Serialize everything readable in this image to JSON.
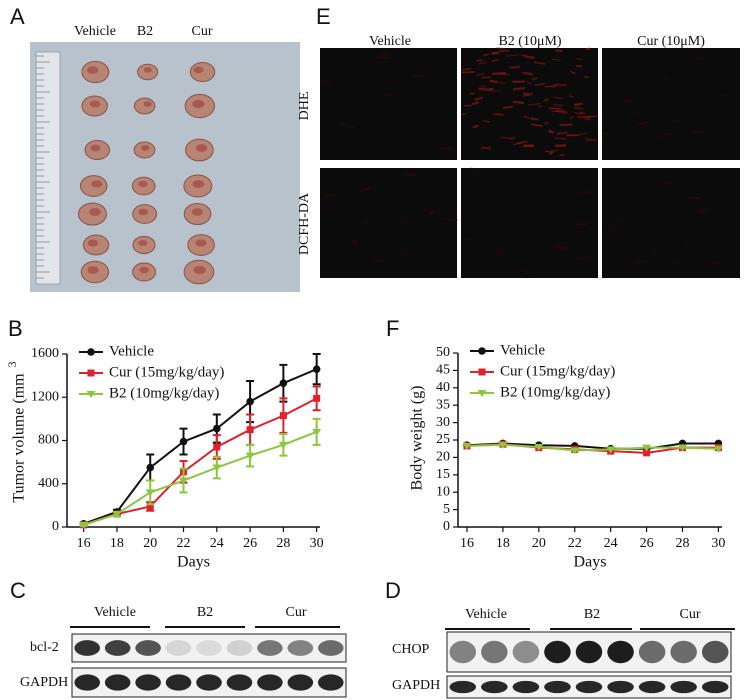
{
  "chart_data": [
    {
      "type": "line",
      "panel_label": "B",
      "xlabel": "Days",
      "ylabel": "Tumor volume (mm",
      "ylabel_superscript": "3",
      "x": [
        16,
        18,
        20,
        22,
        24,
        26,
        28,
        30
      ],
      "xlim": [
        15,
        30.2
      ],
      "xticks": [
        16,
        18,
        20,
        22,
        24,
        26,
        28,
        30
      ],
      "ylim": [
        0,
        1600
      ],
      "yticks": [
        0,
        400,
        800,
        1200,
        1600
      ],
      "legend": "upper left",
      "series": [
        {
          "name": "Vehicle",
          "color": "#111111",
          "marker": "circle",
          "values": [
            30,
            140,
            550,
            790,
            910,
            1160,
            1330,
            1460
          ],
          "errors": [
            10,
            20,
            120,
            120,
            130,
            190,
            170,
            140
          ]
        },
        {
          "name": "Cur (15mg/kg/day)",
          "color": "#e0202c",
          "marker": "square",
          "values": [
            20,
            120,
            190,
            510,
            740,
            900,
            1030,
            1190
          ],
          "errors": [
            10,
            20,
            40,
            100,
            110,
            140,
            160,
            110
          ]
        },
        {
          "name": "B2 (10mg/kg/day)",
          "color": "#8cc63f",
          "marker": "triangle",
          "values": [
            20,
            120,
            320,
            430,
            550,
            660,
            760,
            880
          ],
          "errors": [
            10,
            20,
            110,
            110,
            100,
            100,
            100,
            120
          ]
        }
      ]
    },
    {
      "type": "line",
      "panel_label": "F",
      "xlabel": "Days",
      "ylabel": "Body weight (g)",
      "x": [
        16,
        18,
        20,
        22,
        24,
        26,
        28,
        30
      ],
      "xlim": [
        15.5,
        30.2
      ],
      "xticks": [
        16,
        18,
        20,
        22,
        24,
        26,
        28,
        30
      ],
      "ylim": [
        0,
        50
      ],
      "yticks": [
        0,
        5,
        10,
        15,
        20,
        25,
        30,
        35,
        40,
        45,
        50
      ],
      "legend": "upper left",
      "series": [
        {
          "name": "Vehicle",
          "color": "#111111",
          "marker": "circle",
          "values": [
            23.5,
            24,
            23.5,
            23.3,
            22.5,
            22.5,
            24,
            24
          ]
        },
        {
          "name": "Cur (15mg/kg/day)",
          "color": "#e0202c",
          "marker": "square",
          "values": [
            23.3,
            23.8,
            22.8,
            22.3,
            21.8,
            21.3,
            22.8,
            22.8
          ]
        },
        {
          "name": "B2 (10mg/kg/day)",
          "color": "#8cc63f",
          "marker": "triangle",
          "values": [
            23.3,
            23.6,
            23,
            22,
            22.3,
            22.8,
            22.8,
            22.5
          ]
        }
      ]
    }
  ],
  "panel_a": {
    "label": "A",
    "columns": [
      "Vehicle",
      "B2",
      "Cur"
    ]
  },
  "panel_c": {
    "label": "C",
    "groups": [
      "Vehicle",
      "B2",
      "Cur"
    ],
    "rows": [
      "bcl-2",
      "GAPDH"
    ]
  },
  "panel_d": {
    "label": "D",
    "groups": [
      "Vehicle",
      "B2",
      "Cur"
    ],
    "rows": [
      "CHOP",
      "GAPDH"
    ]
  },
  "panel_e": {
    "label": "E",
    "columns": [
      "Vehicle",
      "B2 (10μM)",
      "Cur (10μM)"
    ],
    "rows": [
      "DHE",
      "DCFH-DA"
    ]
  }
}
